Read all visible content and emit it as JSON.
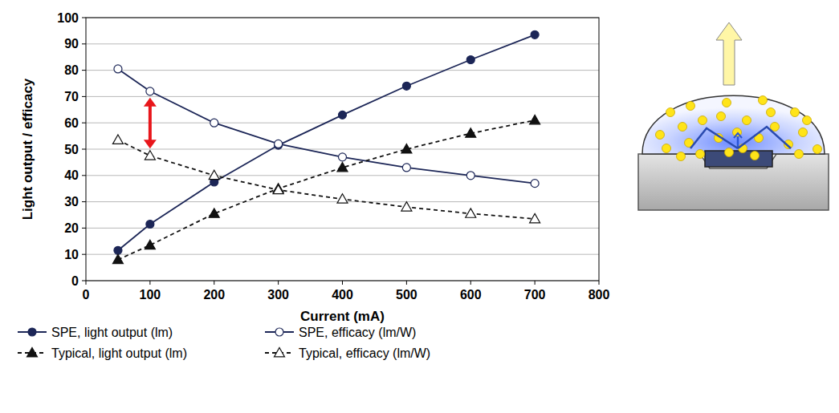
{
  "chart_data": {
    "type": "line",
    "x": [
      50,
      100,
      200,
      300,
      400,
      500,
      600,
      700
    ],
    "xlim": [
      0,
      800
    ],
    "xticks": [
      0,
      100,
      200,
      300,
      400,
      500,
      600,
      700,
      800
    ],
    "ylim": [
      0,
      100
    ],
    "yticks": [
      0,
      10,
      20,
      30,
      40,
      50,
      60,
      70,
      80,
      90,
      100
    ],
    "xlabel": "Current (mA)",
    "ylabel": "Light output / efficacy",
    "grid": true,
    "legend": "bottom",
    "series": [
      {
        "name": "SPE, light output (lm)",
        "color": "#1c2657",
        "marker": "circle",
        "line_style": "solid",
        "values": [
          11.5,
          21.5,
          37.5,
          51.5,
          63,
          74,
          84,
          93.5
        ]
      },
      {
        "name": "SPE, efficacy (lm/W)",
        "color": "#1c2657",
        "marker": "circle-open",
        "line_style": "solid",
        "values": [
          80.5,
          72,
          60,
          52,
          47,
          43,
          40,
          37
        ]
      },
      {
        "name": "Typical, light output (lm)",
        "color": "#111111",
        "marker": "triangle",
        "line_style": "dashed",
        "values": [
          8,
          13.5,
          25.5,
          35,
          43,
          50,
          56,
          61
        ]
      },
      {
        "name": "Typical, efficacy (lm/W)",
        "color": "#111111",
        "marker": "triangle-open",
        "line_style": "dashed",
        "values": [
          53.5,
          47.5,
          40,
          34.5,
          31,
          28,
          25.5,
          23.5
        ]
      }
    ]
  }
}
